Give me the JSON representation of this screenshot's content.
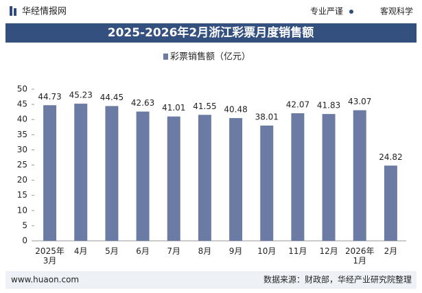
{
  "header": {
    "logo": "华经情报网",
    "tagline_left": "专业严谨",
    "tagline_right": "客观科学"
  },
  "footer": {
    "website": "www.huaon.com",
    "source": "数据来源：财政部，华经产业研究院整理"
  },
  "chart_data": {
    "type": "bar",
    "title": "2025-2026年2月浙江彩票月度销售额",
    "categories": [
      "2025年\n3月",
      "4月",
      "5月",
      "6月",
      "7月",
      "8月",
      "9月",
      "10月",
      "11月",
      "12月",
      "2026年\n1月",
      "2月"
    ],
    "series": [
      {
        "name": "彩票销售额（亿元）",
        "color": "#6b7ba3",
        "values": [
          44.73,
          45.23,
          44.45,
          42.63,
          41.01,
          41.55,
          40.48,
          38.01,
          42.07,
          41.83,
          43.07,
          24.82
        ]
      }
    ],
    "ylim": [
      0,
      50
    ],
    "yticks": [
      0,
      5,
      10,
      15,
      20,
      25,
      30,
      35,
      40,
      45,
      50
    ],
    "grid": false
  }
}
